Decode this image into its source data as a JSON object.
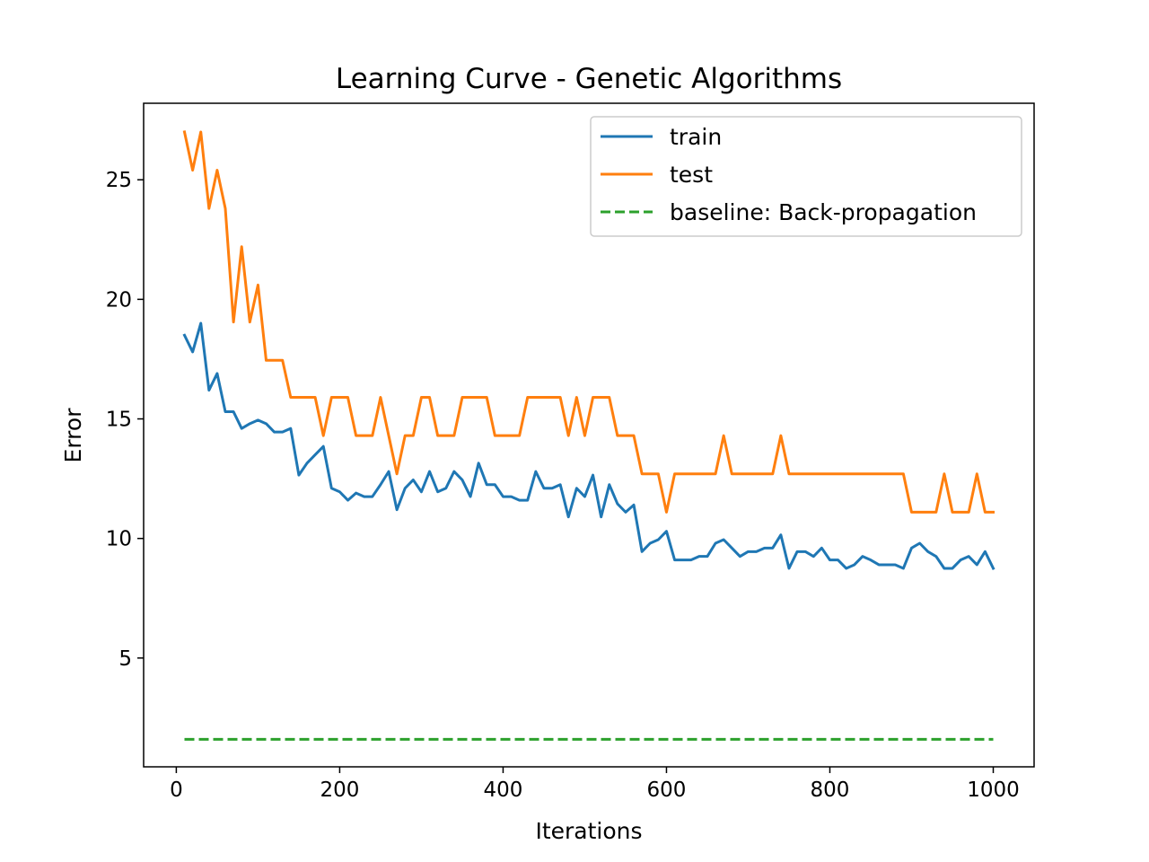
{
  "chart_data": {
    "type": "line",
    "title": "Learning Curve - Genetic Algorithms",
    "xlabel": "Iterations",
    "ylabel": "Error",
    "xlim": [
      -40,
      1050
    ],
    "ylim": [
      0.45,
      28.2
    ],
    "xticks": [
      0,
      200,
      400,
      600,
      800,
      1000
    ],
    "xtick_labels": [
      "0",
      "200",
      "400",
      "600",
      "800",
      "1000"
    ],
    "yticks": [
      5,
      10,
      15,
      20,
      25
    ],
    "ytick_labels": [
      "5",
      "10",
      "15",
      "20",
      "25"
    ],
    "grid": false,
    "legend_position": "top-right",
    "x": [
      10,
      20,
      30,
      40,
      50,
      60,
      70,
      80,
      90,
      100,
      110,
      120,
      130,
      140,
      150,
      160,
      170,
      180,
      190,
      200,
      210,
      220,
      230,
      240,
      250,
      260,
      270,
      280,
      290,
      300,
      310,
      320,
      330,
      340,
      350,
      360,
      370,
      380,
      390,
      400,
      410,
      420,
      430,
      440,
      450,
      460,
      470,
      480,
      490,
      500,
      510,
      520,
      530,
      540,
      550,
      560,
      570,
      580,
      590,
      600,
      610,
      620,
      630,
      640,
      650,
      660,
      670,
      680,
      690,
      700,
      710,
      720,
      730,
      740,
      750,
      760,
      770,
      780,
      790,
      800,
      810,
      820,
      830,
      840,
      850,
      860,
      870,
      880,
      890,
      900,
      910,
      920,
      930,
      940,
      950,
      960,
      970,
      980,
      990,
      1000
    ],
    "series": [
      {
        "name": "train",
        "color": "#1f77b4",
        "style": "solid",
        "values": [
          18.5,
          17.8,
          19.0,
          16.2,
          16.9,
          15.3,
          15.3,
          14.6,
          14.8,
          14.95,
          14.8,
          14.45,
          14.45,
          14.6,
          12.65,
          13.15,
          13.5,
          13.85,
          12.1,
          11.95,
          11.6,
          11.9,
          11.75,
          11.75,
          12.25,
          12.8,
          11.2,
          12.1,
          12.45,
          11.95,
          12.8,
          11.95,
          12.1,
          12.8,
          12.45,
          11.75,
          13.15,
          12.25,
          12.25,
          11.75,
          11.75,
          11.6,
          11.6,
          12.8,
          12.1,
          12.1,
          12.25,
          10.9,
          12.1,
          11.75,
          12.65,
          10.9,
          12.25,
          11.45,
          11.1,
          11.4,
          9.45,
          9.8,
          9.95,
          10.3,
          9.1,
          9.1,
          9.1,
          9.25,
          9.25,
          9.8,
          9.95,
          9.6,
          9.25,
          9.45,
          9.45,
          9.6,
          9.6,
          10.15,
          8.75,
          9.45,
          9.45,
          9.25,
          9.6,
          9.1,
          9.1,
          8.75,
          8.9,
          9.25,
          9.1,
          8.9,
          8.9,
          8.9,
          8.75,
          9.6,
          9.8,
          9.45,
          9.25,
          8.75,
          8.75,
          9.1,
          9.25,
          8.9,
          9.45,
          8.75
        ]
      },
      {
        "name": "test",
        "color": "#ff7f0e",
        "style": "solid",
        "values": [
          27.0,
          25.4,
          27.0,
          23.8,
          25.4,
          23.8,
          19.05,
          22.2,
          19.05,
          20.6,
          17.45,
          17.45,
          17.45,
          15.9,
          15.9,
          15.9,
          15.9,
          14.3,
          15.9,
          15.9,
          15.9,
          14.3,
          14.3,
          14.3,
          15.9,
          14.3,
          12.7,
          14.3,
          14.3,
          15.9,
          15.9,
          14.3,
          14.3,
          14.3,
          15.9,
          15.9,
          15.9,
          15.9,
          14.3,
          14.3,
          14.3,
          14.3,
          15.9,
          15.9,
          15.9,
          15.9,
          15.9,
          14.3,
          15.9,
          14.3,
          15.9,
          15.9,
          15.9,
          14.3,
          14.3,
          14.3,
          12.7,
          12.7,
          12.7,
          11.1,
          12.7,
          12.7,
          12.7,
          12.7,
          12.7,
          12.7,
          14.3,
          12.7,
          12.7,
          12.7,
          12.7,
          12.7,
          12.7,
          14.3,
          12.7,
          12.7,
          12.7,
          12.7,
          12.7,
          12.7,
          12.7,
          12.7,
          12.7,
          12.7,
          12.7,
          12.7,
          12.7,
          12.7,
          12.7,
          11.1,
          11.1,
          11.1,
          11.1,
          12.7,
          11.1,
          11.1,
          11.1,
          12.7,
          11.1,
          11.1
        ]
      },
      {
        "name": "baseline: Back-propagation",
        "color": "#2ca02c",
        "style": "dashed",
        "x_range": [
          10,
          1000
        ],
        "value": 1.6
      }
    ]
  }
}
